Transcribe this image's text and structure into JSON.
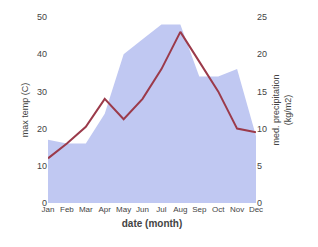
{
  "chart_data": {
    "type": "line",
    "categories": [
      "Jan",
      "Feb",
      "Mar",
      "Apr",
      "May",
      "Jun",
      "Jul",
      "Aug",
      "Sep",
      "Oct",
      "Nov",
      "Dec"
    ],
    "series": [
      {
        "type": "area",
        "axis": "y2",
        "color": "#c0c8f2",
        "values": [
          8.5,
          8.0,
          8.0,
          12.0,
          20.0,
          22.0,
          24.0,
          24.0,
          17.0,
          17.0,
          18.0,
          9.0
        ]
      },
      {
        "type": "line",
        "color": "#9b3a4a",
        "values": [
          12.0,
          16.0,
          20.5,
          28.0,
          22.5,
          28.0,
          36.0,
          46.0,
          38.0,
          30.0,
          20.0,
          19.0
        ]
      }
    ],
    "xlabel": "date (month)",
    "ylabel": "max temp (C)",
    "y2label": "med. precipitation\n(kg/m2)",
    "ylim": [
      0,
      50
    ],
    "yticks": [
      0,
      10,
      20,
      30,
      40,
      50
    ],
    "y2lim": [
      0,
      25
    ],
    "y2ticks": [
      0,
      5,
      10,
      15,
      20,
      25
    ],
    "grid": false
  }
}
